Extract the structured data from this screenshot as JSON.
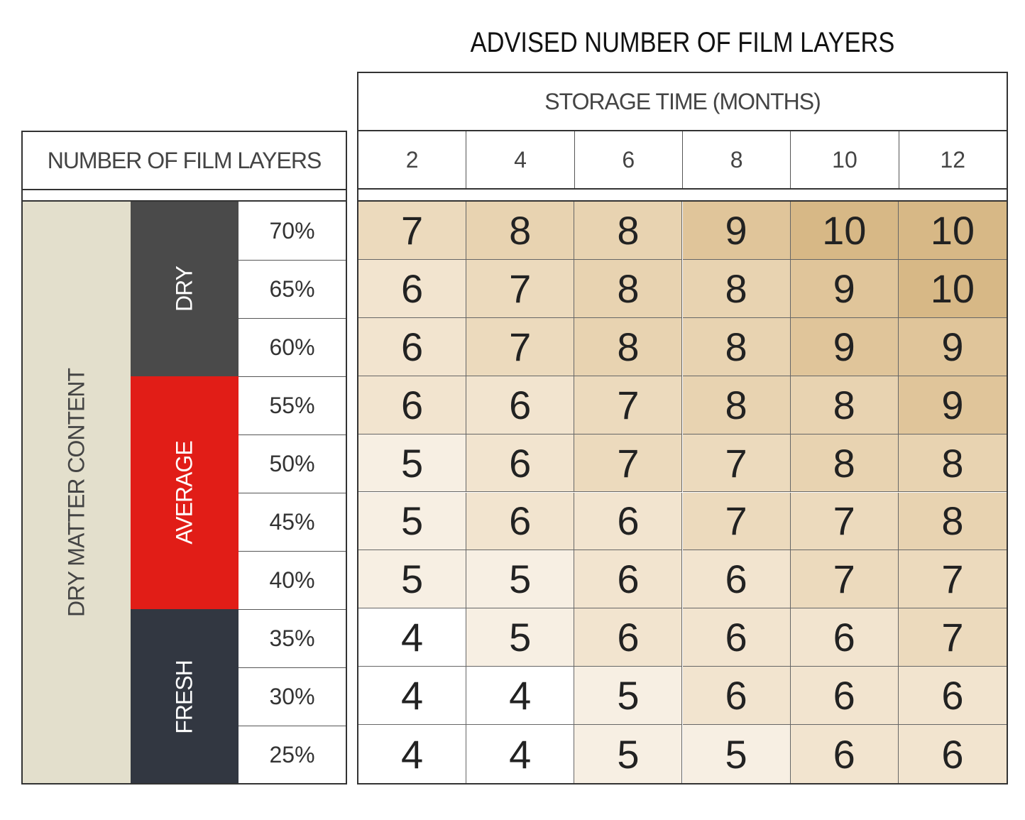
{
  "title": "ADVISED NUMBER OF FILM LAYERS",
  "storage_header": "STORAGE TIME (MONTHS)",
  "left_header": "NUMBER OF FILM LAYERS",
  "row_group_label": "DRY MATTER CONTENT",
  "bands": {
    "dry": {
      "label": "DRY",
      "color": "#4a4a4a"
    },
    "average": {
      "label": "AVERAGE",
      "color": "#e11d17"
    },
    "fresh": {
      "label": "FRESH",
      "color": "#323741"
    }
  },
  "heat_colors": {
    "4": "#ffffff",
    "5": "#f7efe3",
    "6": "#f2e4cf",
    "7": "#ecdabd",
    "8": "#e8d3b1",
    "9": "#e0c59a",
    "10": "#d7b886"
  },
  "chart_data": {
    "type": "heatmap",
    "title": "ADVISED NUMBER OF FILM LAYERS",
    "xlabel": "STORAGE TIME (MONTHS)",
    "ylabel": "DRY MATTER CONTENT",
    "columns": [
      "2",
      "4",
      "6",
      "8",
      "10",
      "12"
    ],
    "rows": [
      "70%",
      "65%",
      "60%",
      "55%",
      "50%",
      "45%",
      "40%",
      "35%",
      "30%",
      "25%"
    ],
    "row_groups": [
      {
        "label": "DRY",
        "rows": [
          "70%",
          "65%",
          "60%"
        ]
      },
      {
        "label": "AVERAGE",
        "rows": [
          "55%",
          "50%",
          "45%",
          "40%"
        ]
      },
      {
        "label": "FRESH",
        "rows": [
          "35%",
          "30%",
          "25%"
        ]
      }
    ],
    "values": [
      [
        7,
        8,
        8,
        9,
        10,
        10
      ],
      [
        6,
        7,
        8,
        8,
        9,
        10
      ],
      [
        6,
        7,
        8,
        8,
        9,
        9
      ],
      [
        6,
        6,
        7,
        8,
        8,
        9
      ],
      [
        5,
        6,
        7,
        7,
        8,
        8
      ],
      [
        5,
        6,
        6,
        7,
        7,
        8
      ],
      [
        5,
        5,
        6,
        6,
        7,
        7
      ],
      [
        4,
        5,
        6,
        6,
        6,
        7
      ],
      [
        4,
        4,
        5,
        6,
        6,
        6
      ],
      [
        4,
        4,
        5,
        5,
        6,
        6
      ]
    ]
  }
}
